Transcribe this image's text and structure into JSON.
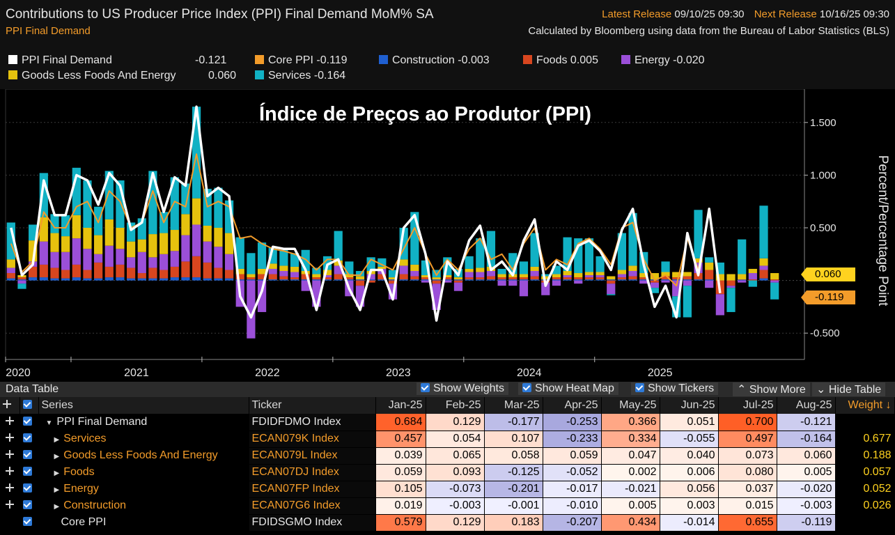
{
  "header": {
    "title": "Contributions to US Producer Price Index (PPI) Final Demand MoM% SA",
    "subtitle": "PPI Final Demand",
    "latest_release_label": "Latest Release",
    "latest_release_value": "09/10/25 09:30",
    "next_release_label": "Next Release",
    "next_release_value": "10/16/25 09:30",
    "source": "Calculated by Bloomberg using data from the Bureau of Labor Statistics (BLS)"
  },
  "legend": [
    {
      "name": "PPI Final Demand",
      "value": "-0.121",
      "color": "#ffffff"
    },
    {
      "name": "Core PPI",
      "value": "-0.119",
      "color": "#f39c2a"
    },
    {
      "name": "Construction",
      "value": "-0.003",
      "color": "#1f5fd0"
    },
    {
      "name": "Foods",
      "value": "0.005",
      "color": "#d8461f"
    },
    {
      "name": "Energy",
      "value": "-0.020",
      "color": "#9b4fd8"
    },
    {
      "name": "Goods Less Foods And Energy",
      "value": "0.060",
      "color": "#e6c20e"
    },
    {
      "name": "Services",
      "value": "-0.164",
      "color": "#11b1c4"
    }
  ],
  "chart_data": {
    "type": "bar",
    "overlay_title": "Índice de Preços ao Produtor (PPI)",
    "ylabel": "Percent/Percentage Point",
    "ylim": [
      -0.75,
      1.75
    ],
    "yticks": [
      "1.500",
      "1.000",
      "0.500",
      "-0.500"
    ],
    "ytick_values": [
      1.5,
      1.0,
      0.5,
      -0.5
    ],
    "xtick_labels": [
      "2020",
      "2021",
      "2022",
      "2023",
      "2024",
      "2025"
    ],
    "xtick_start_index": [
      0,
      6,
      18,
      30,
      42,
      54
    ],
    "end_tags": [
      {
        "label": "0.060",
        "value": 0.06,
        "color": "#ffd21f"
      },
      {
        "label": "-0.119",
        "value": -0.119,
        "color": "#f39c2a"
      }
    ],
    "stack_series": [
      "Construction",
      "Foods",
      "Energy",
      "Goods Less Foods And Energy",
      "Services"
    ],
    "bars": [
      [
        0.02,
        0.05,
        0.05,
        0.08,
        0.35
      ],
      [
        0.01,
        0.02,
        -0.03,
        0.02,
        -0.05
      ],
      [
        0.03,
        0.1,
        0.05,
        0.2,
        0.15
      ],
      [
        0.03,
        0.12,
        0.22,
        0.23,
        0.42
      ],
      [
        0.02,
        0.1,
        0.15,
        0.18,
        0.18
      ],
      [
        0.02,
        0.08,
        0.17,
        0.15,
        0.2
      ],
      [
        0.03,
        0.12,
        0.25,
        0.22,
        0.45
      ],
      [
        0.02,
        0.08,
        0.2,
        0.2,
        0.45
      ],
      [
        0.02,
        0.15,
        0.08,
        0.18,
        0.27
      ],
      [
        0.03,
        0.1,
        0.2,
        0.25,
        0.46
      ],
      [
        0.03,
        0.12,
        0.15,
        0.2,
        0.45
      ],
      [
        0.02,
        0.1,
        0.1,
        0.15,
        0.18
      ],
      [
        0.02,
        0.05,
        0.2,
        0.12,
        0.2
      ],
      [
        0.02,
        0.1,
        0.1,
        0.22,
        0.6
      ],
      [
        0.02,
        0.08,
        0.15,
        0.2,
        0.2
      ],
      [
        0.03,
        0.1,
        0.15,
        0.2,
        0.5
      ],
      [
        0.03,
        0.15,
        0.25,
        0.2,
        0.29
      ],
      [
        0.03,
        0.2,
        0.3,
        0.25,
        0.87
      ],
      [
        0.02,
        0.15,
        0.2,
        0.15,
        0.35
      ],
      [
        0.02,
        0.1,
        0.2,
        0.18,
        0.38
      ],
      [
        0.02,
        0.08,
        0.15,
        0.2,
        0.31
      ],
      [
        0.01,
        0.05,
        -0.25,
        0.05,
        0.3
      ],
      [
        0.01,
        0.02,
        -0.55,
        0.03,
        0.2
      ],
      [
        0.01,
        0.05,
        -0.3,
        0.05,
        0.25
      ],
      [
        0.01,
        0.05,
        0.05,
        0.05,
        0.15
      ],
      [
        0.01,
        0.03,
        0.05,
        0.05,
        0.15
      ],
      [
        0.01,
        0.02,
        0.05,
        0.05,
        0.13
      ],
      [
        0.01,
        0.05,
        -0.1,
        0.03,
        0.2
      ],
      [
        0.01,
        0.02,
        -0.25,
        0.03,
        0.06
      ],
      [
        0.01,
        0.02,
        0.02,
        0.05,
        0.13
      ],
      [
        0.01,
        0.05,
        0.08,
        0.05,
        0.28
      ],
      [
        0.01,
        0.02,
        -0.15,
        0.03,
        0.12
      ],
      [
        0.01,
        -0.05,
        -0.2,
        0.03,
        0.05
      ],
      [
        0.01,
        -0.02,
        0.05,
        0.03,
        0.13
      ],
      [
        0.01,
        0.05,
        0.05,
        0.02,
        0.08
      ],
      [
        0.01,
        -0.03,
        -0.15,
        0.02,
        0.07
      ],
      [
        0.01,
        0.05,
        0.08,
        0.06,
        0.3
      ],
      [
        0.01,
        0.03,
        0.05,
        0.06,
        0.5
      ],
      [
        0.01,
        0.02,
        -0.02,
        0.02,
        0.14
      ],
      [
        0.01,
        -0.03,
        -0.25,
        0.02,
        0.07
      ],
      [
        0.01,
        0.02,
        -0.02,
        0.02,
        0.17
      ],
      [
        0.01,
        -0.02,
        -0.08,
        0.02,
        0.08
      ],
      [
        0.01,
        0.02,
        0.05,
        0.03,
        0.12
      ],
      [
        0.01,
        0.02,
        0.05,
        0.04,
        0.28
      ],
      [
        0.01,
        0.03,
        0.05,
        0.04,
        0.34
      ],
      [
        0.01,
        0.02,
        -0.05,
        0.03,
        0.05
      ],
      [
        0.01,
        0.02,
        -0.05,
        0.03,
        0.2
      ],
      [
        0.01,
        0.02,
        -0.15,
        0.03,
        0.12
      ],
      [
        0.01,
        0.03,
        0.05,
        0.04,
        0.32
      ],
      [
        0.01,
        -0.02,
        -0.12,
        0.03,
        0.02
      ],
      [
        0.01,
        0.02,
        -0.05,
        0.03,
        0.08
      ],
      [
        0.01,
        0.02,
        0.02,
        0.04,
        0.32
      ],
      [
        0.01,
        0.02,
        -0.03,
        0.04,
        0.33
      ],
      [
        0.01,
        0.02,
        0.02,
        0.03,
        0.32
      ],
      [
        0.01,
        0.02,
        0.02,
        0.03,
        0.15
      ],
      [
        0.01,
        -0.03,
        -0.1,
        0.03,
        -0.01
      ],
      [
        0.01,
        0.02,
        0.03,
        0.04,
        0.35
      ],
      [
        0.01,
        0.03,
        0.05,
        0.05,
        0.5
      ],
      [
        0.01,
        0.02,
        -0.03,
        0.04,
        0.2
      ],
      [
        0.01,
        -0.02,
        -0.05,
        0.06,
        -0.05
      ],
      [
        0.01,
        0.03,
        -0.02,
        0.04,
        0.1
      ],
      [
        0.01,
        0.02,
        -0.15,
        0.05,
        -0.2
      ],
      [
        0.01,
        0.03,
        -0.05,
        0.04,
        -0.3
      ],
      [
        0.01,
        0.06,
        0.1,
        0.04,
        0.46
      ],
      [
        0.01,
        0.09,
        -0.07,
        0.07,
        0.05
      ],
      [
        0.0,
        -0.13,
        -0.2,
        0.06,
        0.11
      ],
      [
        0.0,
        -0.05,
        -0.02,
        0.06,
        -0.23
      ],
      [
        0.01,
        0.0,
        -0.02,
        0.05,
        0.33
      ],
      [
        0.0,
        0.01,
        0.06,
        0.04,
        -0.06
      ],
      [
        0.02,
        0.08,
        0.04,
        0.07,
        0.5
      ],
      [
        0.0,
        0.01,
        -0.02,
        0.06,
        -0.16
      ]
    ],
    "ppi_line": [
      0.5,
      0.05,
      0.15,
      0.95,
      0.62,
      0.62,
      1.0,
      0.95,
      0.72,
      1.02,
      0.9,
      0.48,
      0.55,
      1.02,
      0.65,
      0.98,
      0.9,
      1.65,
      0.8,
      0.88,
      0.8,
      -0.15,
      -0.35,
      -0.1,
      0.32,
      0.3,
      0.3,
      0.1,
      -0.28,
      0.15,
      0.2,
      -0.08,
      -0.28,
      0.1,
      0.1,
      -0.18,
      0.5,
      0.62,
      0.25,
      -0.38,
      0.18,
      0.05,
      0.38,
      0.52,
      0.1,
      0.18,
      0.05,
      0.38,
      0.58,
      -0.05,
      0.18,
      0.1,
      0.33,
      0.38,
      0.28,
      0.1,
      0.48,
      0.68,
      0.15,
      -0.25,
      -0.05,
      -0.35,
      0.45,
      0.05,
      0.68,
      -0.12
    ],
    "core_line": [
      0.35,
      0.08,
      0.18,
      0.65,
      0.5,
      0.5,
      0.7,
      0.75,
      0.55,
      0.85,
      0.75,
      0.5,
      0.55,
      0.85,
      0.55,
      0.75,
      0.7,
      1.2,
      0.7,
      0.75,
      0.7,
      0.4,
      0.42,
      0.35,
      0.3,
      0.28,
      0.25,
      0.2,
      0.1,
      0.2,
      0.2,
      0.05,
      0.05,
      0.2,
      0.15,
      0.1,
      0.3,
      0.5,
      0.25,
      0.05,
      0.2,
      0.1,
      0.3,
      0.4,
      0.2,
      0.25,
      0.1,
      0.35,
      0.5,
      0.1,
      0.2,
      0.15,
      0.35,
      0.4,
      0.3,
      0.15,
      0.5,
      0.55,
      0.2,
      0.0,
      0.05,
      -0.05,
      0.4,
      0.1,
      0.65,
      -0.12
    ]
  },
  "table": {
    "title": "Data Table",
    "controls": {
      "show_weights": "Show Weights",
      "show_heat_map": "Show Heat Map",
      "show_tickers": "Show Tickers",
      "show_more": "Show More",
      "hide_table": "Hide Table"
    },
    "col_series": "Series",
    "col_ticker": "Ticker",
    "col_weight": "Weight ↓",
    "months": [
      "Jan-25",
      "Feb-25",
      "Mar-25",
      "Apr-25",
      "May-25",
      "Jun-25",
      "Jul-25",
      "Aug-25"
    ],
    "rows": [
      {
        "name": "PPI Final Demand",
        "ticker": "FDIDFDMO Index",
        "values": [
          "0.684",
          "0.129",
          "-0.177",
          "-0.253",
          "0.366",
          "0.051",
          "0.700",
          "-0.121"
        ],
        "weight": "",
        "orange": false,
        "expand": "down",
        "indent": 0
      },
      {
        "name": "Services",
        "ticker": "ECAN079K Index",
        "values": [
          "0.457",
          "0.054",
          "0.107",
          "-0.233",
          "0.334",
          "-0.055",
          "0.497",
          "-0.164"
        ],
        "weight": "0.677",
        "orange": true,
        "expand": "right",
        "indent": 1
      },
      {
        "name": "Goods Less Foods And Energy",
        "ticker": "ECAN079L Index",
        "values": [
          "0.039",
          "0.065",
          "0.058",
          "0.059",
          "0.047",
          "0.040",
          "0.073",
          "0.060"
        ],
        "weight": "0.188",
        "orange": true,
        "expand": "right",
        "indent": 1
      },
      {
        "name": "Foods",
        "ticker": "ECAN07DJ Index",
        "values": [
          "0.059",
          "0.093",
          "-0.125",
          "-0.052",
          "0.002",
          "0.006",
          "0.080",
          "0.005"
        ],
        "weight": "0.057",
        "orange": true,
        "expand": "right",
        "indent": 1
      },
      {
        "name": "Energy",
        "ticker": "ECAN07FP Index",
        "values": [
          "0.105",
          "-0.073",
          "-0.201",
          "-0.017",
          "-0.021",
          "0.056",
          "0.037",
          "-0.020"
        ],
        "weight": "0.052",
        "orange": true,
        "expand": "right",
        "indent": 1
      },
      {
        "name": "Construction",
        "ticker": "ECAN07G6 Index",
        "values": [
          "0.019",
          "-0.003",
          "-0.001",
          "-0.010",
          "0.005",
          "0.003",
          "0.015",
          "-0.003"
        ],
        "weight": "0.026",
        "orange": true,
        "expand": "right",
        "indent": 1
      },
      {
        "name": "Core PPI",
        "ticker": "FDIDSGMO Index",
        "values": [
          "0.579",
          "0.129",
          "0.183",
          "-0.207",
          "0.434",
          "-0.014",
          "0.655",
          "-0.119"
        ],
        "weight": "",
        "orange": false,
        "expand": "",
        "indent": 1
      }
    ]
  }
}
